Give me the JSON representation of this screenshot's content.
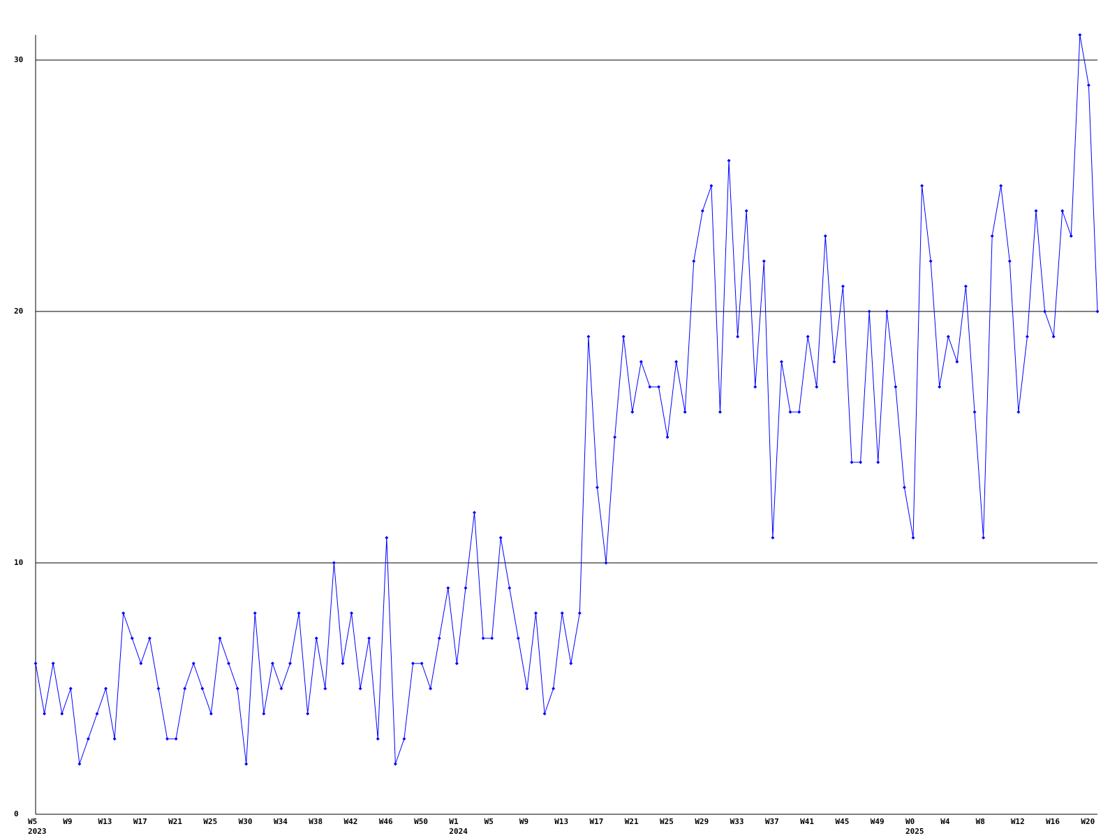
{
  "chart_data": {
    "type": "line",
    "color": "#0000ff",
    "grid": true,
    "categories": [
      "W5\n2023",
      null,
      null,
      null,
      "W9",
      null,
      null,
      null,
      "W13",
      null,
      null,
      null,
      "W17",
      null,
      null,
      null,
      "W21",
      null,
      null,
      null,
      "W25",
      null,
      null,
      null,
      "W30",
      null,
      null,
      null,
      "W34",
      null,
      null,
      null,
      "W38",
      null,
      null,
      null,
      "W42",
      null,
      null,
      null,
      "W46",
      null,
      null,
      null,
      "W50",
      null,
      null,
      null,
      "W1\n2024",
      null,
      null,
      null,
      "W5",
      null,
      null,
      null,
      "W9",
      null,
      null,
      null,
      "W13",
      null,
      null,
      null,
      "W17",
      null,
      null,
      null,
      "W21",
      null,
      null,
      null,
      "W25",
      null,
      null,
      null,
      "W29",
      null,
      null,
      null,
      "W33",
      null,
      null,
      null,
      "W37",
      null,
      null,
      null,
      "W41",
      null,
      null,
      null,
      "W45",
      null,
      null,
      null,
      "W49",
      null,
      null,
      null,
      "W0\n2025",
      null,
      null,
      null,
      "W4",
      null,
      null,
      null,
      "W8",
      null,
      null,
      null,
      "W12",
      null,
      null,
      null,
      "W16",
      null,
      null,
      null,
      "W20",
      null
    ],
    "values": [
      6,
      4,
      6,
      4,
      5,
      2,
      3,
      4,
      5,
      3,
      8,
      7,
      6,
      7,
      5,
      3,
      3,
      5,
      6,
      5,
      4,
      7,
      6,
      5,
      2,
      8,
      4,
      6,
      5,
      6,
      8,
      4,
      7,
      5,
      10,
      6,
      8,
      5,
      7,
      3,
      11,
      2,
      3,
      6,
      6,
      5,
      7,
      9,
      6,
      9,
      12,
      7,
      7,
      11,
      9,
      7,
      5,
      8,
      4,
      5,
      8,
      6,
      8,
      19,
      13,
      10,
      15,
      19,
      16,
      18,
      17,
      17,
      15,
      18,
      16,
      22,
      24,
      25,
      16,
      26,
      19,
      24,
      17,
      22,
      11,
      18,
      16,
      16,
      19,
      17,
      23,
      18,
      21,
      14,
      14,
      20,
      14,
      20,
      17,
      13,
      11,
      25,
      22,
      17,
      19,
      18,
      21,
      16,
      11,
      23,
      25,
      22,
      16,
      19,
      24,
      20,
      19,
      24,
      23,
      31,
      29,
      20
    ],
    "ylim": [
      0,
      31
    ],
    "yticks": [
      0,
      10,
      20,
      30
    ]
  }
}
